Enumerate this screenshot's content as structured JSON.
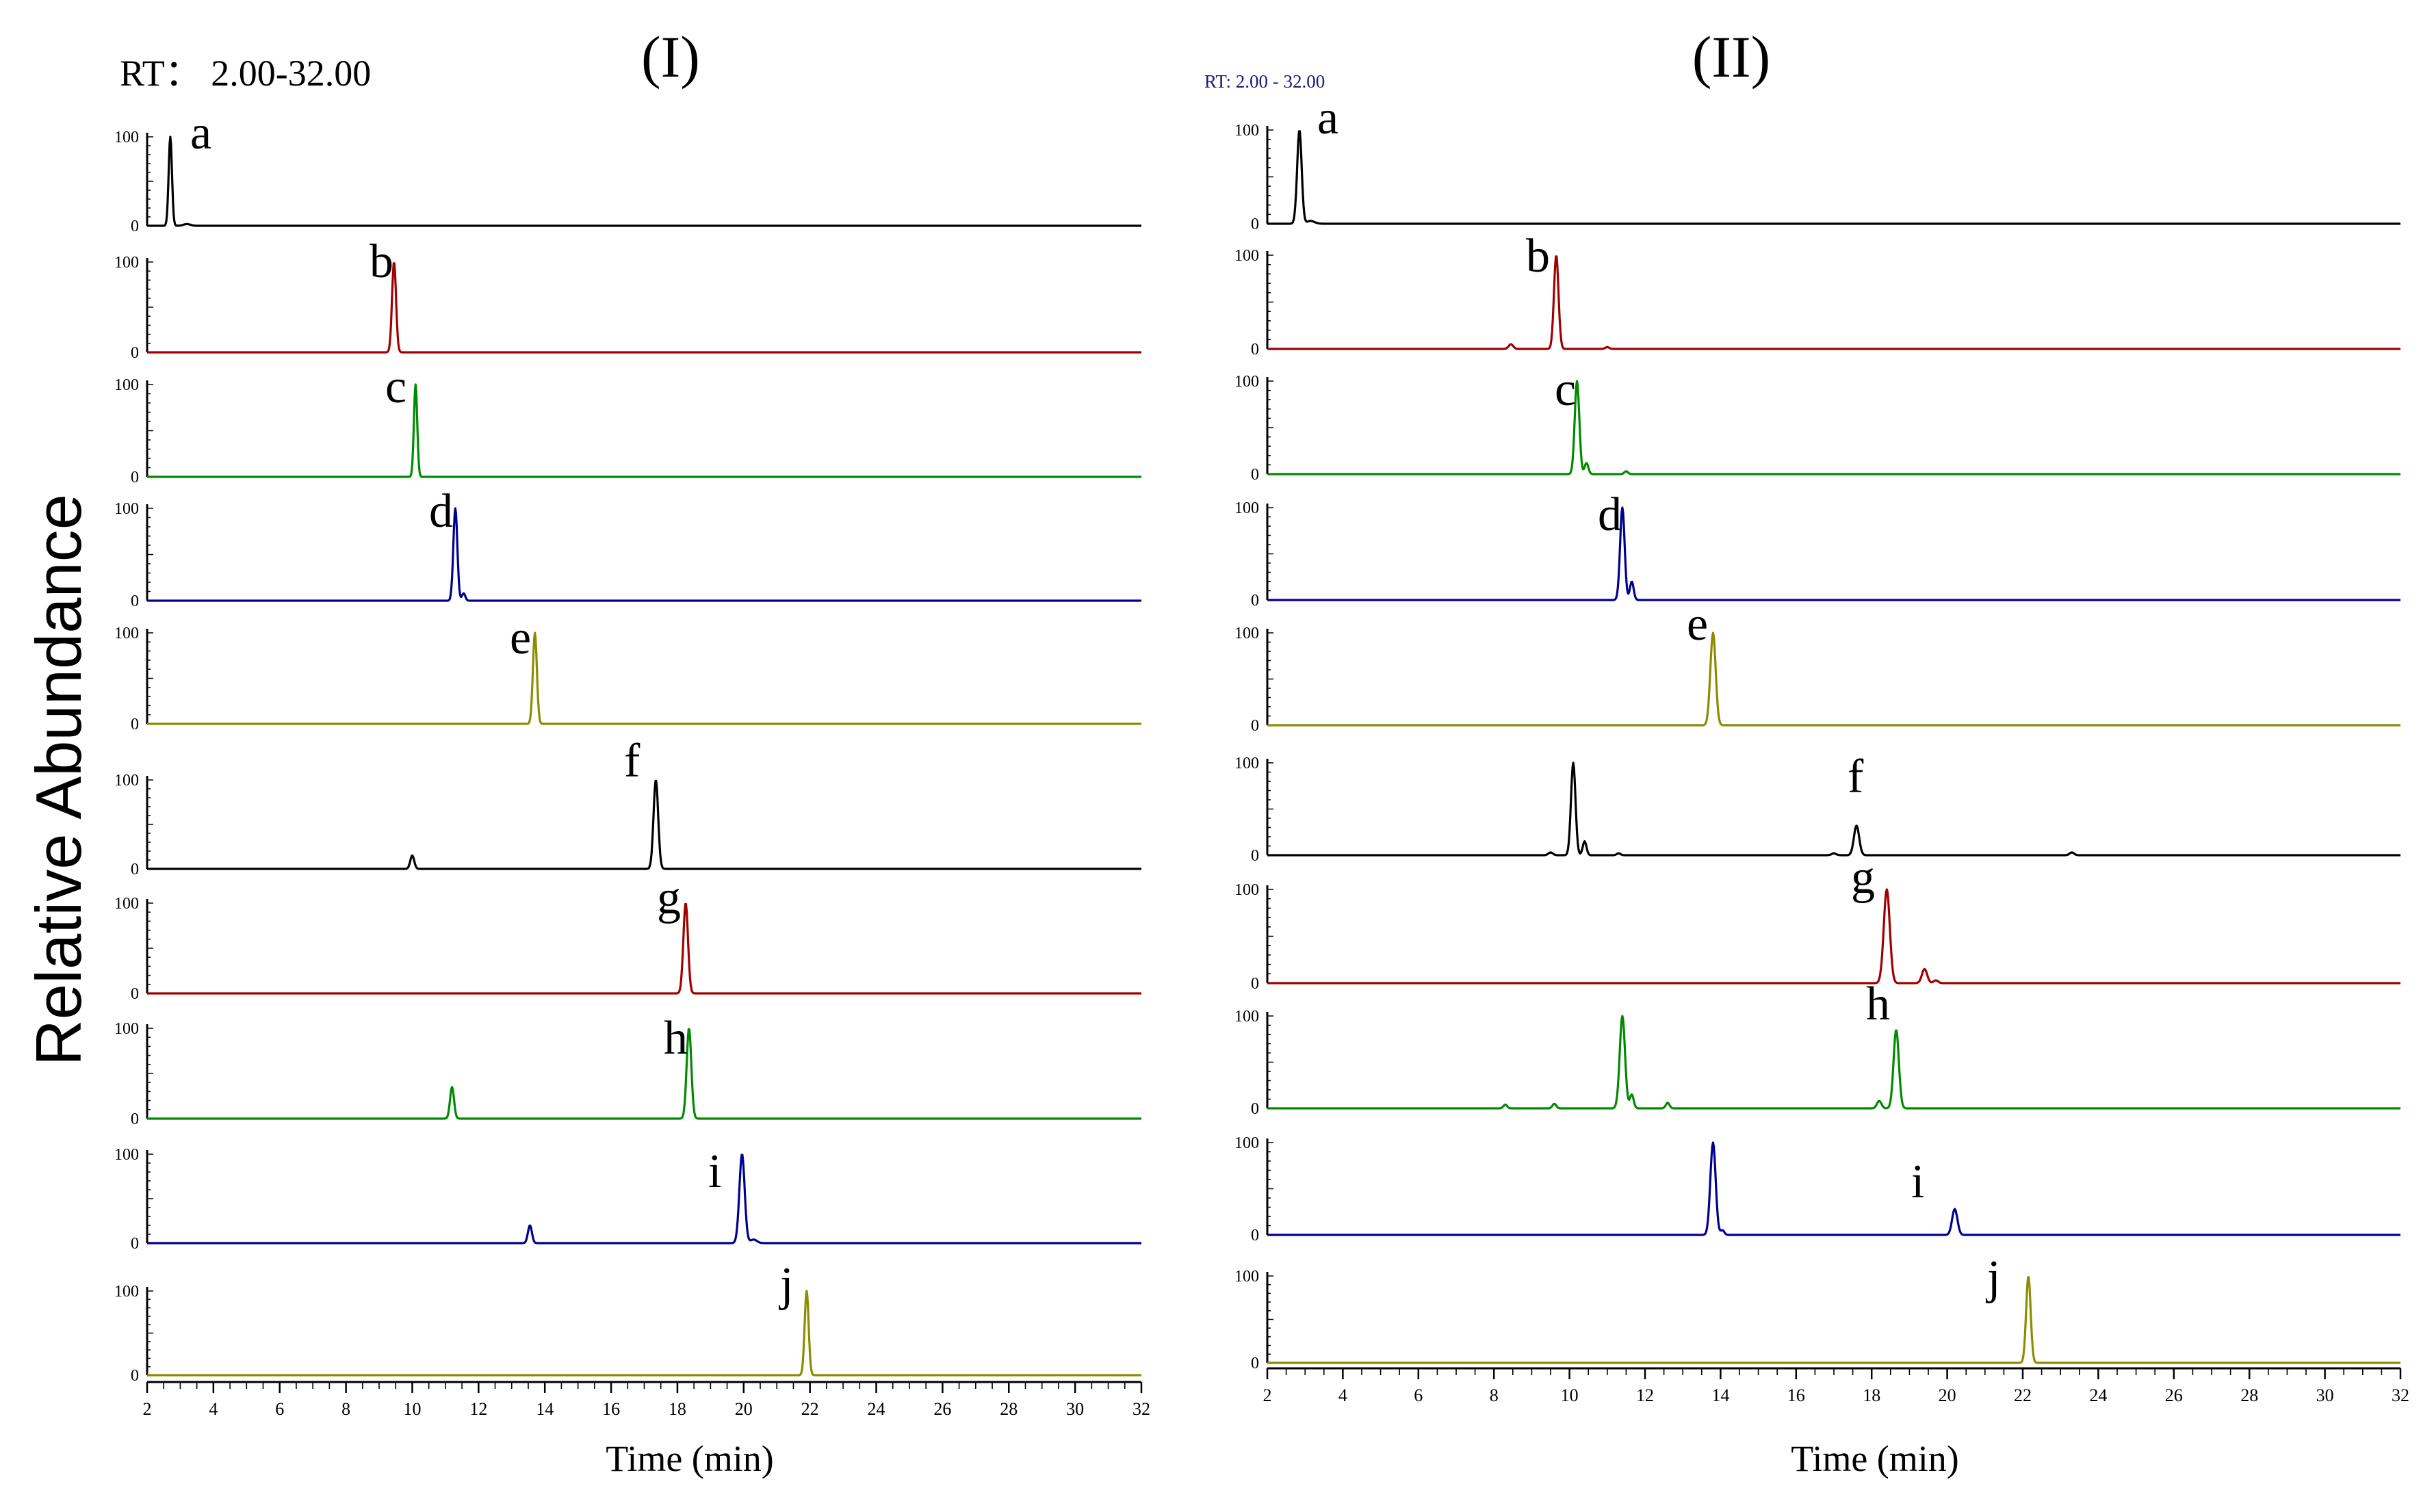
{
  "ylabel": "Relative Abundance",
  "panels": [
    {
      "id": "I",
      "title": "(I)",
      "rt_label": "RT： 2.00-32.00",
      "xlabel": "Time (min)"
    },
    {
      "id": "II",
      "title": "(II)",
      "rt_label": "RT: 2.00 - 32.00",
      "xlabel": "Time (min)"
    }
  ],
  "colors": {
    "black": "#000000",
    "red": "#a00000",
    "green": "#008a00",
    "blue": "#000090",
    "olive": "#8c8c00",
    "rt_blue": "#1a1a80"
  },
  "chart_data": [
    {
      "type": "line",
      "title": "(I)",
      "xlabel": "Time (min)",
      "ylabel": "Relative Abundance",
      "xlim": [
        2,
        32
      ],
      "ylim": [
        0,
        100
      ],
      "x_ticks": [
        "2",
        "4",
        "6",
        "8",
        "10",
        "12",
        "14",
        "16",
        "18",
        "20",
        "22",
        "24",
        "26",
        "28",
        "30",
        "32"
      ],
      "y_ticks": [
        "0",
        "100"
      ],
      "series": [
        {
          "name": "a",
          "color": "black",
          "peaks": [
            [
              2.7,
              100,
              0.05
            ],
            [
              3.2,
              2,
              0.1
            ]
          ]
        },
        {
          "name": "b",
          "color": "red",
          "peaks": [
            [
              9.45,
              100,
              0.06
            ]
          ]
        },
        {
          "name": "c",
          "color": "green",
          "peaks": [
            [
              10.1,
              100,
              0.05
            ]
          ]
        },
        {
          "name": "d",
          "color": "blue",
          "peaks": [
            [
              11.3,
              100,
              0.06
            ],
            [
              11.55,
              8,
              0.05
            ]
          ]
        },
        {
          "name": "e",
          "color": "olive",
          "peaks": [
            [
              13.7,
              100,
              0.06
            ]
          ]
        },
        {
          "name": "f",
          "color": "black",
          "peaks": [
            [
              10.0,
              15,
              0.06
            ],
            [
              17.35,
              100,
              0.07
            ]
          ]
        },
        {
          "name": "g",
          "color": "red",
          "peaks": [
            [
              18.25,
              100,
              0.07
            ]
          ]
        },
        {
          "name": "h",
          "color": "green",
          "peaks": [
            [
              11.2,
              35,
              0.06
            ],
            [
              18.35,
              100,
              0.07
            ]
          ]
        },
        {
          "name": "i",
          "color": "blue",
          "peaks": [
            [
              13.55,
              20,
              0.06
            ],
            [
              19.95,
              100,
              0.08
            ],
            [
              20.3,
              4,
              0.1
            ]
          ]
        },
        {
          "name": "j",
          "color": "olive",
          "peaks": [
            [
              21.9,
              100,
              0.06
            ]
          ]
        }
      ]
    },
    {
      "type": "line",
      "title": "(II)",
      "xlabel": "Time (min)",
      "ylabel": "Relative Abundance",
      "xlim": [
        2,
        32
      ],
      "ylim": [
        0,
        100
      ],
      "x_ticks": [
        "2",
        "4",
        "6",
        "8",
        "10",
        "12",
        "14",
        "16",
        "18",
        "20",
        "22",
        "24",
        "26",
        "28",
        "30",
        "32"
      ],
      "y_ticks": [
        "0",
        "100"
      ],
      "series": [
        {
          "name": "a",
          "color": "black",
          "peaks": [
            [
              2.85,
              100,
              0.06
            ],
            [
              3.15,
              3,
              0.1
            ]
          ]
        },
        {
          "name": "b",
          "color": "red",
          "peaks": [
            [
              8.45,
              5,
              0.06
            ],
            [
              9.65,
              100,
              0.06
            ],
            [
              11.0,
              2,
              0.05
            ]
          ]
        },
        {
          "name": "c",
          "color": "green",
          "peaks": [
            [
              10.2,
              100,
              0.06
            ],
            [
              10.45,
              12,
              0.05
            ],
            [
              11.5,
              3,
              0.05
            ]
          ]
        },
        {
          "name": "d",
          "color": "blue",
          "peaks": [
            [
              11.4,
              100,
              0.06
            ],
            [
              11.65,
              20,
              0.05
            ]
          ]
        },
        {
          "name": "e",
          "color": "olive",
          "peaks": [
            [
              13.8,
              100,
              0.07
            ]
          ]
        },
        {
          "name": "f",
          "color": "black",
          "peaks": [
            [
              9.5,
              3,
              0.06
            ],
            [
              10.1,
              100,
              0.06
            ],
            [
              10.4,
              15,
              0.05
            ],
            [
              11.3,
              2,
              0.05
            ],
            [
              17.0,
              2,
              0.06
            ],
            [
              17.6,
              32,
              0.07
            ],
            [
              23.3,
              3,
              0.06
            ]
          ]
        },
        {
          "name": "g",
          "color": "red",
          "peaks": [
            [
              18.4,
              100,
              0.08
            ],
            [
              19.4,
              15,
              0.07
            ],
            [
              19.7,
              3,
              0.06
            ]
          ]
        },
        {
          "name": "h",
          "color": "green",
          "peaks": [
            [
              8.3,
              4,
              0.05
            ],
            [
              9.6,
              5,
              0.05
            ],
            [
              11.4,
              100,
              0.07
            ],
            [
              11.65,
              15,
              0.05
            ],
            [
              12.6,
              6,
              0.05
            ],
            [
              18.2,
              8,
              0.06
            ],
            [
              18.65,
              85,
              0.07
            ]
          ]
        },
        {
          "name": "i",
          "color": "blue",
          "peaks": [
            [
              13.8,
              100,
              0.07
            ],
            [
              14.05,
              5,
              0.05
            ],
            [
              20.2,
              28,
              0.07
            ]
          ]
        },
        {
          "name": "j",
          "color": "olive",
          "peaks": [
            [
              22.15,
              100,
              0.06
            ]
          ]
        }
      ]
    }
  ]
}
